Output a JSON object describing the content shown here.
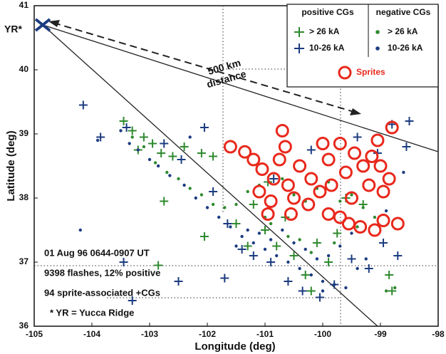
{
  "chart_data": {
    "type": "scatter",
    "x_label": "Longitude (deg)",
    "y_label": "Latitude (deg)",
    "xlim": [
      -105,
      -98
    ],
    "ylim": [
      36,
      41
    ],
    "xticks": [
      -105,
      -104,
      -103,
      -102,
      -101,
      -100,
      -99,
      -98
    ],
    "yticks": [
      36,
      37,
      38,
      39,
      40,
      41
    ],
    "site_label": "YR*",
    "distance_label": [
      "500 km",
      "distance"
    ],
    "notes": [
      "01 Aug 96  0644-0907 UT",
      "9398 flashes, 12% positive",
      "94 sprite-associated +CGs",
      "* YR = Yucca Ridge"
    ],
    "groups": [
      {
        "name": "positive CGs",
        "marker": "plus",
        "series": [
          {
            "name": "> 26 kA",
            "color": "#2f8a2f",
            "x": [
              -103.45,
              -103.3,
              -103.1,
              -102.95,
              -102.8,
              -103.2,
              -102.6,
              -102.4,
              -102.1,
              -101.9,
              -102.75,
              -101.5,
              -101.2,
              -101.0,
              -100.8,
              -100.5,
              -100.3,
              -100.1,
              -99.9,
              -99.6,
              -99.3,
              -98.85,
              -98.8,
              -100.95,
              -100.65,
              -101.3,
              -102.05,
              -102.85,
              -100.2,
              -99.75
            ],
            "y": [
              39.2,
              39.05,
              38.95,
              38.85,
              38.7,
              38.75,
              38.65,
              38.8,
              38.7,
              38.65,
              37.95,
              37.6,
              37.9,
              37.5,
              37.25,
              37.1,
              36.8,
              37.3,
              37.0,
              38.0,
              37.9,
              36.8,
              36.55,
              38.25,
              37.7,
              37.25,
              37.4,
              36.95,
              36.55,
              37.45
            ]
          },
          {
            "name": "10-26 kA",
            "color": "#1c3c80",
            "x": [
              -104.15,
              -103.85,
              -103.4,
              -102.75,
              -102.45,
              -102.05,
              -101.9,
              -101.65,
              -101.4,
              -101.2,
              -100.9,
              -100.6,
              -100.35,
              -100.05,
              -99.8,
              -99.5,
              -99.2,
              -98.95,
              -98.7,
              -98.5,
              -98.8,
              -98.55,
              -99.05,
              -99.4,
              -100.2,
              -100.85,
              -101.7,
              -102.5,
              -103.45,
              -103.3
            ],
            "y": [
              39.45,
              38.95,
              39.1,
              38.85,
              38.6,
              39.1,
              38.1,
              37.6,
              37.2,
              37.1,
              37.0,
              36.7,
              36.55,
              36.45,
              36.65,
              37.05,
              36.9,
              37.3,
              37.1,
              39.2,
              39.15,
              38.8,
              38.7,
              38.95,
              38.75,
              38.3,
              36.75,
              36.7,
              37.0,
              36.4
            ]
          }
        ]
      },
      {
        "name": "negative CGs",
        "marker": "dot",
        "series": [
          {
            "name": "> 26 kA",
            "color": "#2f8a2f",
            "x": [
              -103.3,
              -103.1,
              -102.9,
              -102.7,
              -102.5,
              -102.3,
              -102.1,
              -101.9,
              -101.7,
              -101.5,
              -101.3,
              -101.1,
              -100.9,
              -100.7,
              -100.5,
              -100.3,
              -100.1,
              -99.9,
              -99.7,
              -99.5,
              -99.3,
              -99.1,
              -100.6,
              -100.2,
              -99.8,
              -99.4,
              -101.0,
              -100.4,
              -98.9,
              -98.75
            ],
            "y": [
              38.95,
              38.8,
              38.55,
              38.4,
              38.3,
              38.15,
              38.05,
              37.9,
              37.85,
              37.9,
              38.1,
              38.2,
              37.6,
              38.3,
              38.05,
              37.95,
              38.15,
              38.25,
              37.95,
              38.05,
              37.85,
              37.7,
              37.4,
              37.15,
              37.3,
              37.55,
              37.7,
              37.35,
              36.55,
              36.6
            ]
          },
          {
            "name": "10-26 kA",
            "color": "#1c3c80",
            "x": [
              -103.5,
              -103.35,
              -103.2,
              -103.0,
              -102.85,
              -102.65,
              -102.4,
              -102.2,
              -102.0,
              -101.8,
              -101.6,
              -101.4,
              -101.2,
              -101.0,
              -100.8,
              -100.6,
              -100.4,
              -100.2,
              -100.0,
              -99.8,
              -99.6,
              -99.4,
              -101.5,
              -101.3,
              -101.1,
              -100.9,
              -100.7,
              -100.5,
              -100.3,
              -100.1,
              -99.9,
              -99.7,
              -99.5,
              -103.9,
              -104.2,
              -102.3,
              -98.6,
              -98.9,
              -99.25,
              -100.0
            ],
            "y": [
              39.05,
              38.85,
              38.75,
              38.6,
              38.5,
              38.35,
              38.2,
              38.0,
              37.85,
              37.7,
              37.55,
              37.4,
              37.3,
              37.2,
              37.1,
              37.0,
              36.9,
              36.8,
              36.7,
              36.65,
              36.6,
              36.9,
              37.25,
              37.5,
              37.45,
              37.35,
              37.5,
              37.3,
              37.2,
              37.05,
              37.1,
              37.25,
              37.45,
              38.9,
              37.5,
              38.95,
              38.4,
              37.8,
              37.05,
              36.55
            ]
          }
        ]
      }
    ],
    "sprites": {
      "name": "Sprites",
      "color": "#e8281c",
      "x": [
        -101.6,
        -101.35,
        -101.2,
        -101.05,
        -100.7,
        -100.65,
        -100.75,
        -100.85,
        -100.6,
        -101.1,
        -100.9,
        -100.4,
        -100.2,
        -100.0,
        -99.9,
        -99.7,
        -99.6,
        -99.45,
        -99.3,
        -99.2,
        -99.0,
        -98.85,
        -98.8,
        -99.05,
        -99.5,
        -99.7,
        -99.9,
        -100.25,
        -100.5,
        -100.55,
        -100.95,
        -99.35,
        -99.1,
        -98.95,
        -98.7,
        -99.55,
        -100.05,
        -99.85,
        -99.15,
        -98.95
      ],
      "y": [
        38.8,
        38.72,
        38.6,
        38.45,
        39.05,
        38.8,
        38.6,
        38.3,
        38.2,
        38.1,
        37.95,
        38.5,
        38.3,
        38.85,
        38.6,
        38.85,
        38.4,
        38.7,
        38.5,
        38.2,
        38.5,
        38.3,
        39.1,
        38.9,
        38.0,
        37.7,
        37.75,
        37.9,
        38.0,
        37.75,
        37.75,
        37.55,
        37.5,
        37.65,
        37.6,
        37.6,
        38.1,
        38.2,
        38.65,
        38.1
      ]
    }
  }
}
